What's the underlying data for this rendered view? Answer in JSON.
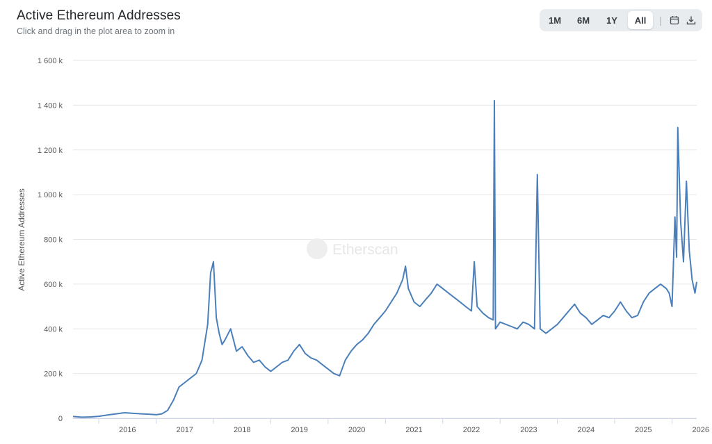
{
  "header": {
    "title": "Active Ethereum Addresses",
    "subtitle": "Click and drag in the plot area to zoom in"
  },
  "toolbar": {
    "ranges": [
      "1M",
      "6M",
      "1Y",
      "All"
    ],
    "active_range": "All",
    "separator": "|",
    "icons": [
      "calendar-icon",
      "download-icon"
    ]
  },
  "watermark": {
    "text": "Etherscan"
  },
  "colors": {
    "line": "#4a7fba",
    "grid": "#e6e6e6",
    "toolbar_bg": "#e9ecef"
  },
  "chart_data": {
    "type": "line",
    "title": "Active Ethereum Addresses",
    "ylabel": "Active Ethereum Addresses",
    "xlabel": "",
    "ylim": [
      0,
      1600000
    ],
    "xlim": [
      2015.55,
      2026.43
    ],
    "grid": true,
    "legend": "none",
    "y_tick_labels": [
      "0",
      "200 k",
      "400 k",
      "600 k",
      "800 k",
      "1 000 k",
      "1 200 k",
      "1 400 k",
      "1 600 k"
    ],
    "y_tick_values": [
      0,
      200000,
      400000,
      600000,
      800000,
      1000000,
      1200000,
      1400000,
      1600000
    ],
    "x_tick_labels": [
      "2016",
      "2017",
      "2018",
      "2019",
      "2020",
      "2021",
      "2022",
      "2023",
      "2024",
      "2025",
      "2026"
    ],
    "series": [
      {
        "x": [
          2015.55,
          2015.7,
          2015.85,
          2016.0,
          2016.15,
          2016.3,
          2016.45,
          2016.6,
          2016.75,
          2016.9,
          2017.0,
          2017.1,
          2017.2,
          2017.3,
          2017.4,
          2017.5,
          2017.6,
          2017.7,
          2017.8,
          2017.9,
          2017.95,
          2018.0,
          2018.05,
          2018.1,
          2018.15,
          2018.2,
          2018.3,
          2018.4,
          2018.5,
          2018.6,
          2018.7,
          2018.8,
          2018.9,
          2019.0,
          2019.1,
          2019.2,
          2019.3,
          2019.4,
          2019.5,
          2019.6,
          2019.7,
          2019.8,
          2019.9,
          2020.0,
          2020.1,
          2020.2,
          2020.3,
          2020.4,
          2020.5,
          2020.6,
          2020.7,
          2020.8,
          2020.9,
          2021.0,
          2021.1,
          2021.2,
          2021.3,
          2021.35,
          2021.4,
          2021.5,
          2021.6,
          2021.7,
          2021.8,
          2021.9,
          2022.0,
          2022.1,
          2022.2,
          2022.3,
          2022.4,
          2022.5,
          2022.55,
          2022.6,
          2022.7,
          2022.8,
          2022.88,
          2022.9,
          2022.92,
          2023.0,
          2023.1,
          2023.2,
          2023.3,
          2023.4,
          2023.5,
          2023.6,
          2023.65,
          2023.7,
          2023.8,
          2023.9,
          2024.0,
          2024.1,
          2024.2,
          2024.3,
          2024.4,
          2024.5,
          2024.6,
          2024.7,
          2024.8,
          2024.9,
          2025.0,
          2025.1,
          2025.2,
          2025.3,
          2025.4,
          2025.5,
          2025.6,
          2025.7,
          2025.8,
          2025.9,
          2025.95,
          2026.0,
          2026.05,
          2026.08,
          2026.1,
          2026.15,
          2026.2,
          2026.25,
          2026.3,
          2026.35,
          2026.4,
          2026.43
        ],
        "y": [
          8000,
          5000,
          6000,
          9000,
          15000,
          20000,
          25000,
          22000,
          20000,
          18000,
          16000,
          20000,
          35000,
          80000,
          140000,
          160000,
          180000,
          200000,
          260000,
          420000,
          650000,
          700000,
          450000,
          380000,
          330000,
          350000,
          400000,
          300000,
          320000,
          280000,
          250000,
          260000,
          230000,
          210000,
          230000,
          250000,
          260000,
          300000,
          330000,
          290000,
          270000,
          260000,
          240000,
          220000,
          200000,
          190000,
          260000,
          300000,
          330000,
          350000,
          380000,
          420000,
          450000,
          480000,
          520000,
          560000,
          620000,
          680000,
          580000,
          520000,
          500000,
          530000,
          560000,
          600000,
          580000,
          560000,
          540000,
          520000,
          500000,
          480000,
          700000,
          500000,
          470000,
          450000,
          440000,
          1420000,
          400000,
          430000,
          420000,
          410000,
          400000,
          430000,
          420000,
          400000,
          1090000,
          400000,
          380000,
          400000,
          420000,
          450000,
          480000,
          510000,
          470000,
          450000,
          420000,
          440000,
          460000,
          450000,
          480000,
          520000,
          480000,
          450000,
          460000,
          520000,
          560000,
          580000,
          600000,
          580000,
          560000,
          500000,
          900000,
          720000,
          1300000,
          880000,
          700000,
          1060000,
          750000,
          620000,
          560000,
          610000
        ]
      }
    ]
  }
}
